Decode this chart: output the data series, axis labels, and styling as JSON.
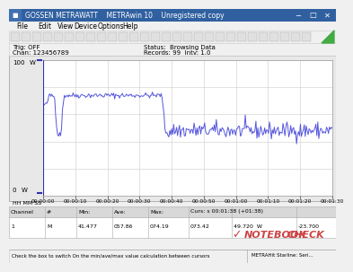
{
  "title": "GOSSEN METRAWATT    METRAwin 10    Unregistered copy",
  "menu_items": [
    "File",
    "Edit",
    "View",
    "Device",
    "Options",
    "Help"
  ],
  "trig_text": "Trig: OFF",
  "chan_text": "Chan: 123456789",
  "status_text": "Status:  Browsing Data",
  "records_text": "Records: 99  Intv: 1.0",
  "y_top_label": "100",
  "y_top_unit": "W",
  "y_bottom_label": "0",
  "y_bottom_unit": "W",
  "hh_mm_ss": "HH MM SS",
  "x_ticks": [
    "00:00:00",
    "00:00:10",
    "00:00:20",
    "00:00:30",
    "00:00:40",
    "00:00:50",
    "00:01:00",
    "00:01:10",
    "00:01:20",
    "00:01:30"
  ],
  "line_color": "#5555dd",
  "grid_color": "#cccccc",
  "plot_bg": "#ffffff",
  "win_bg": "#f0f0f0",
  "titlebar_bg": "#3060a0",
  "titlebar_text": "#ffffff",
  "table_header_bg": "#d8d8d8",
  "table_data_bg": "#ffffff",
  "table_border": "#aaaaaa",
  "table_headers": [
    "Channel",
    "#",
    "Min:",
    "Ave:",
    "Max:",
    "Curs: s 00:01:38 (+01:38)"
  ],
  "table_row": [
    "1",
    "M",
    "41.477",
    "057.86",
    "074.19",
    "073.42",
    "49.720  W",
    "-23.700"
  ],
  "status_bar_text": "Check the box to switch On the min/ave/max value calculation between cursors",
  "status_bar_right": "METRAHit Starline: Seri...",
  "notebookcheck_text": "NOTEBOOKCHECK",
  "notebookcheck_color": "#cc4444",
  "cursor_color": "#3333aa"
}
